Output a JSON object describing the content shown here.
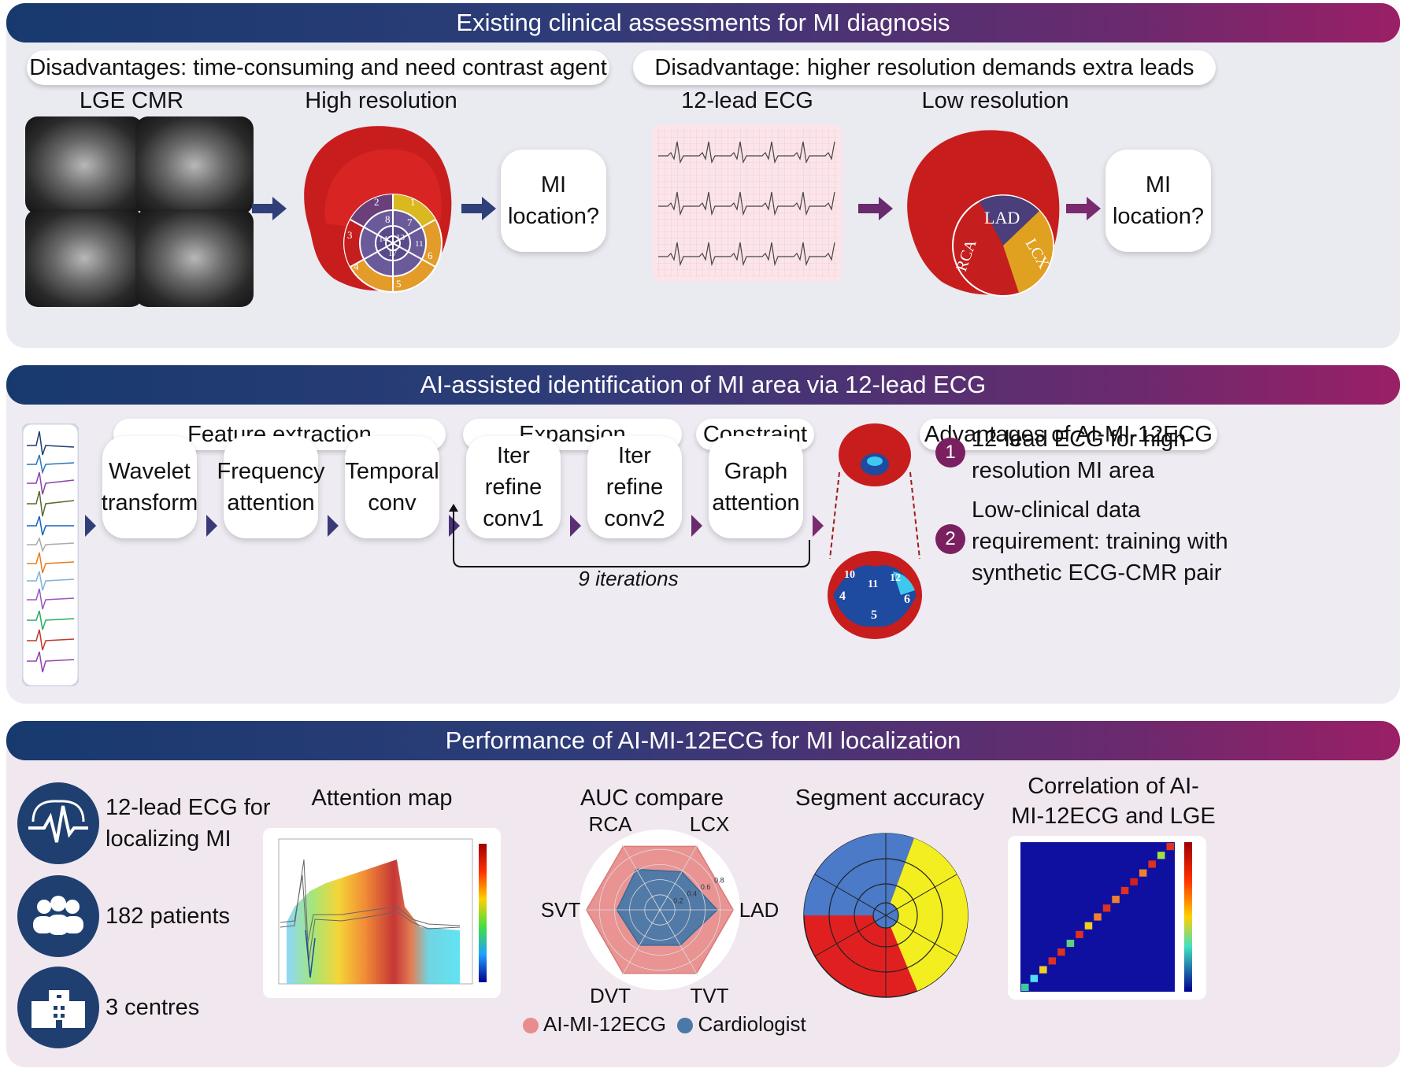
{
  "panel1": {
    "title": "Existing clinical assessments for MI diagnosis",
    "left_disadvantage": "Disadvantages: time-consuming and need contrast agent",
    "right_disadvantage": "Disadvantage: higher resolution demands extra leads",
    "lge_label": "LGE CMR",
    "high_res_label": "High resolution",
    "ecg_label": "12-lead ECG",
    "low_res_label": "Low resolution",
    "mi_question": [
      "MI",
      "location?"
    ],
    "segments_high": [
      "1",
      "2",
      "3",
      "4",
      "5",
      "6",
      "7",
      "8",
      "11",
      "13",
      "14",
      "17"
    ],
    "territories": [
      "LAD",
      "RCA",
      "LCX"
    ]
  },
  "panel2": {
    "title": "AI-assisted identification of MI area via 12-lead ECG",
    "stage_feature": "Feature extraction",
    "stage_expansion": "Expansion",
    "stage_constraint": "Constraint",
    "advantages_title": "Advantages of AI-MI-12ECG",
    "steps": [
      [
        "Wavelet",
        "transform"
      ],
      [
        "Frequency",
        "attention"
      ],
      [
        "Temporal",
        "conv"
      ],
      [
        "Iter refine",
        "conv1"
      ],
      [
        "Iter refine",
        "conv2"
      ],
      [
        "Graph",
        "attention"
      ]
    ],
    "iterations": "9 iterations",
    "segments": [
      "10",
      "4",
      "11",
      "5",
      "12",
      "6"
    ],
    "advantages": [
      {
        "num": "1",
        "lines": [
          "12-lead ECG for high-",
          "resolution MI area"
        ]
      },
      {
        "num": "2",
        "lines": [
          "Low-clinical data",
          "requirement: training with",
          "synthetic ECG-CMR pair"
        ]
      }
    ]
  },
  "panel3": {
    "title": "Performance of AI-MI-12ECG for MI localization",
    "stats": [
      {
        "icon": "ecg-heartbeat-icon",
        "lines": [
          "12-lead ECG for",
          "localizing MI"
        ]
      },
      {
        "icon": "patients-group-icon",
        "lines": [
          "182 patients"
        ]
      },
      {
        "icon": "hospital-building-icon",
        "lines": [
          "3 centres"
        ]
      }
    ],
    "attention_title": "Attention map",
    "auc_title": "AUC compare",
    "segment_title": "Segment accuracy",
    "correlation_title": [
      "Correlation of AI-",
      "MI-12ECG and LGE"
    ],
    "legend": [
      {
        "label": "AI-MI-12ECG",
        "color": "#e88d8d"
      },
      {
        "label": "Cardiologist",
        "color": "#4a78a8"
      }
    ]
  },
  "chart_data": {
    "type": "radar",
    "axes": [
      "RCA",
      "LCX",
      "LAD",
      "TVT",
      "DVT",
      "SVT"
    ],
    "rlim": [
      0,
      1
    ],
    "radial_ticks": [
      "0.2",
      "0.4",
      "0.6",
      "0.8"
    ],
    "series": [
      {
        "name": "AI-MI-12ECG",
        "values": [
          0.97,
          0.97,
          0.97,
          0.97,
          0.97,
          0.97
        ]
      },
      {
        "name": "Cardiologist",
        "values": [
          0.62,
          0.58,
          0.76,
          0.54,
          0.54,
          0.57
        ]
      }
    ]
  }
}
